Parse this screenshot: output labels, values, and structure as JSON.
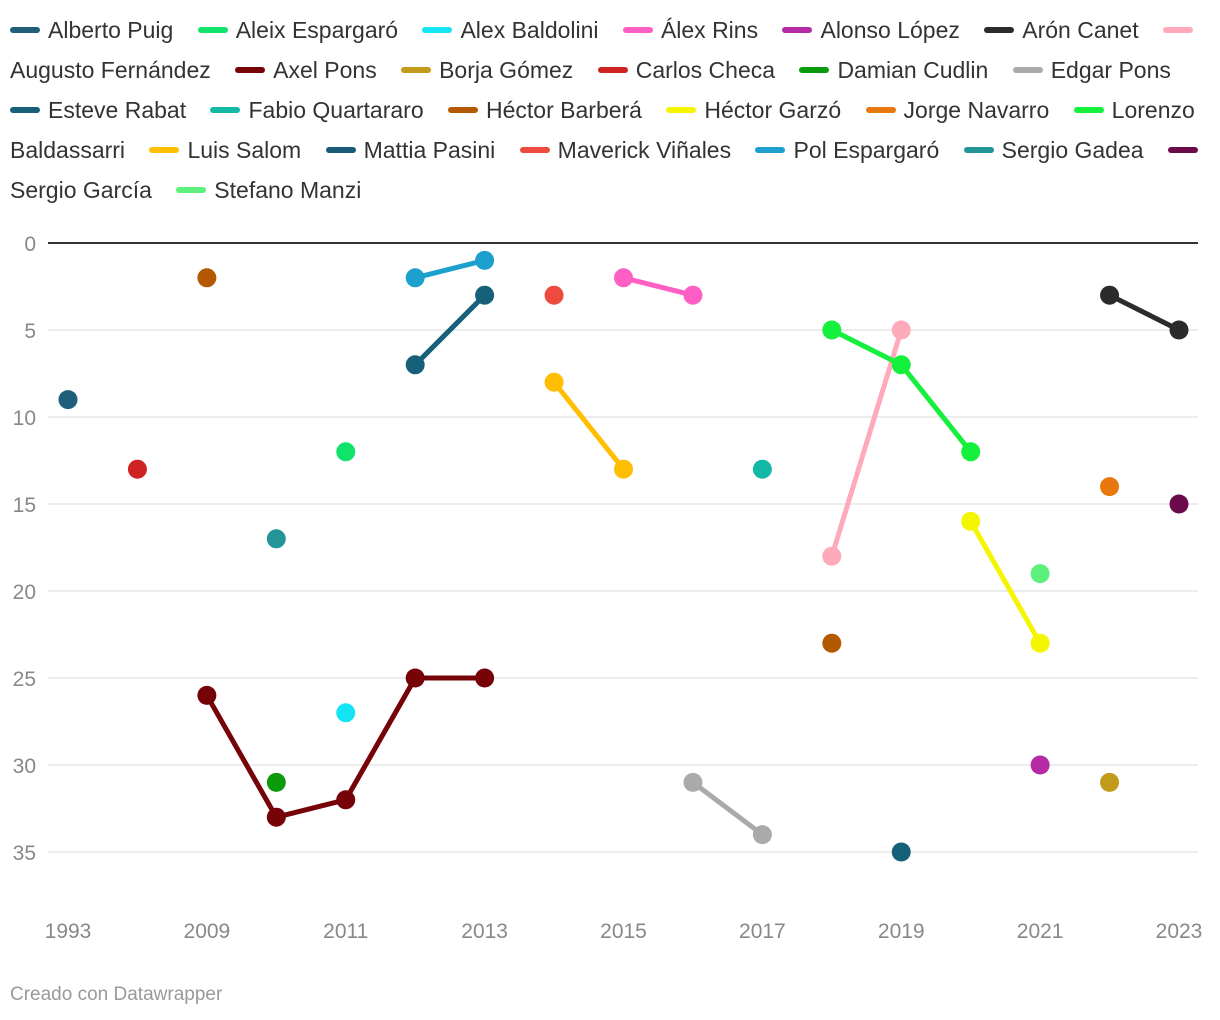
{
  "chart_data": {
    "type": "line",
    "title": "",
    "xlabel": "",
    "ylabel": "",
    "y_reversed": true,
    "ylim": [
      0,
      35
    ],
    "yticks": [
      0,
      5,
      10,
      15,
      20,
      25,
      30,
      35
    ],
    "categories": [
      "1993",
      "1994",
      "2009",
      "2010",
      "2011",
      "2012",
      "2013",
      "2014",
      "2015",
      "2016",
      "2017",
      "2018",
      "2019",
      "2020",
      "2021",
      "2022",
      "2023"
    ],
    "xtick_labels": [
      "1993",
      "2009",
      "2011",
      "2013",
      "2015",
      "2017",
      "2019",
      "2021",
      "2023"
    ],
    "series": [
      {
        "name": "Alberto Puig",
        "color": "#1f5f7a",
        "values": [
          9,
          null,
          null,
          null,
          null,
          null,
          null,
          null,
          null,
          null,
          null,
          null,
          null,
          null,
          null,
          null,
          null
        ]
      },
      {
        "name": "Aleix Espargaró",
        "color": "#10e36a",
        "values": [
          null,
          null,
          null,
          null,
          12,
          null,
          null,
          null,
          null,
          null,
          null,
          null,
          null,
          null,
          null,
          null,
          null
        ]
      },
      {
        "name": "Alex Baldolini",
        "color": "#14e5f5",
        "values": [
          null,
          null,
          null,
          null,
          27,
          null,
          null,
          null,
          null,
          null,
          null,
          null,
          null,
          null,
          null,
          null,
          null
        ]
      },
      {
        "name": "Álex Rins",
        "color": "#ff5ec4",
        "values": [
          null,
          null,
          null,
          null,
          null,
          null,
          null,
          null,
          2,
          3,
          null,
          null,
          null,
          null,
          null,
          null,
          null
        ]
      },
      {
        "name": "Alonso López",
        "color": "#b52aa5",
        "values": [
          null,
          null,
          null,
          null,
          null,
          null,
          null,
          null,
          null,
          null,
          null,
          null,
          null,
          null,
          30,
          null,
          null
        ]
      },
      {
        "name": "Arón Canet",
        "color": "#2b2b2b",
        "values": [
          null,
          null,
          null,
          null,
          null,
          null,
          null,
          null,
          null,
          null,
          null,
          null,
          null,
          null,
          null,
          3,
          5
        ]
      },
      {
        "name": "Augusto Fernández",
        "color": "#ffaabb",
        "values": [
          null,
          null,
          null,
          null,
          null,
          null,
          null,
          null,
          null,
          null,
          null,
          18,
          5,
          null,
          null,
          null,
          null
        ]
      },
      {
        "name": "Axel Pons",
        "color": "#750308",
        "values": [
          null,
          null,
          26,
          33,
          32,
          25,
          25,
          null,
          null,
          null,
          null,
          null,
          null,
          null,
          null,
          null,
          null
        ]
      },
      {
        "name": "Borja Gómez",
        "color": "#c29b1b",
        "values": [
          null,
          null,
          null,
          null,
          null,
          null,
          null,
          null,
          null,
          null,
          null,
          null,
          null,
          null,
          null,
          31,
          null
        ]
      },
      {
        "name": "Carlos Checa",
        "color": "#cf2222",
        "values": [
          null,
          13,
          null,
          null,
          null,
          null,
          null,
          null,
          null,
          null,
          null,
          null,
          null,
          null,
          null,
          null,
          null
        ]
      },
      {
        "name": "Damian Cudlin",
        "color": "#0a9a0a",
        "values": [
          null,
          null,
          null,
          31,
          null,
          null,
          null,
          null,
          null,
          null,
          null,
          null,
          null,
          null,
          null,
          null,
          null
        ]
      },
      {
        "name": "Edgar Pons",
        "color": "#aaaaaa",
        "values": [
          null,
          null,
          null,
          null,
          null,
          null,
          null,
          null,
          null,
          31,
          34,
          null,
          null,
          null,
          null,
          null,
          null
        ]
      },
      {
        "name": "Esteve Rabat",
        "color": "#16607a",
        "values": [
          null,
          null,
          null,
          null,
          null,
          7,
          3,
          null,
          null,
          null,
          null,
          null,
          35,
          null,
          null,
          null,
          null
        ]
      },
      {
        "name": "Fabio Quartararo",
        "color": "#14b8a6",
        "values": [
          null,
          null,
          null,
          null,
          null,
          null,
          null,
          null,
          null,
          null,
          13,
          null,
          null,
          null,
          null,
          null,
          null
        ]
      },
      {
        "name": "Héctor Barberá",
        "color": "#b35a00",
        "values": [
          null,
          null,
          2,
          null,
          null,
          null,
          null,
          null,
          null,
          null,
          null,
          23,
          null,
          null,
          null,
          null,
          null
        ]
      },
      {
        "name": "Héctor Garzó",
        "color": "#f5f500",
        "values": [
          null,
          null,
          null,
          null,
          null,
          null,
          null,
          null,
          null,
          null,
          null,
          null,
          null,
          16,
          23,
          null,
          null
        ]
      },
      {
        "name": "Jorge Navarro",
        "color": "#e8780e",
        "values": [
          null,
          null,
          null,
          null,
          null,
          null,
          null,
          null,
          null,
          null,
          null,
          null,
          null,
          null,
          null,
          14,
          null
        ]
      },
      {
        "name": "Lorenzo Baldassarri",
        "color": "#14f03c",
        "values": [
          null,
          null,
          null,
          null,
          null,
          null,
          null,
          null,
          null,
          null,
          null,
          5,
          7,
          12,
          null,
          null,
          null
        ]
      },
      {
        "name": "Luis Salom",
        "color": "#ffbf00",
        "values": [
          null,
          null,
          null,
          null,
          null,
          null,
          null,
          8,
          13,
          null,
          null,
          null,
          null,
          null,
          null,
          null,
          null
        ]
      },
      {
        "name": "Mattia Pasini",
        "color": "#185a78",
        "values": [
          null,
          null,
          null,
          null,
          null,
          null,
          null,
          null,
          null,
          null,
          null,
          null,
          null,
          null,
          null,
          null,
          null
        ]
      },
      {
        "name": "Maverick Viñales",
        "color": "#ee4b3e",
        "values": [
          null,
          null,
          null,
          null,
          null,
          null,
          null,
          3,
          null,
          null,
          null,
          null,
          null,
          null,
          null,
          null,
          null
        ]
      },
      {
        "name": "Pol Espargaró",
        "color": "#1ea0cf",
        "values": [
          null,
          null,
          null,
          null,
          null,
          2,
          1,
          null,
          null,
          null,
          null,
          null,
          null,
          null,
          null,
          null,
          null
        ]
      },
      {
        "name": "Sergio Gadea",
        "color": "#239598",
        "values": [
          null,
          null,
          null,
          17,
          null,
          null,
          null,
          null,
          null,
          null,
          null,
          null,
          null,
          null,
          null,
          null,
          null
        ]
      },
      {
        "name": "Sergio García",
        "color": "#6a0a4a",
        "values": [
          null,
          null,
          null,
          null,
          null,
          null,
          null,
          null,
          null,
          null,
          null,
          null,
          null,
          null,
          null,
          null,
          15
        ]
      },
      {
        "name": "Stefano Manzi",
        "color": "#5cf07c",
        "values": [
          null,
          null,
          null,
          null,
          null,
          null,
          null,
          null,
          null,
          null,
          null,
          null,
          null,
          null,
          19,
          null,
          null
        ]
      }
    ]
  },
  "footer": {
    "credit": "Creado con Datawrapper"
  }
}
